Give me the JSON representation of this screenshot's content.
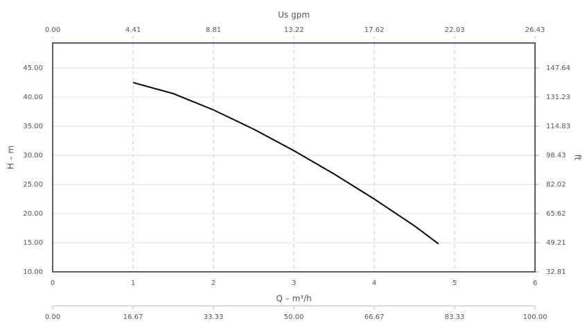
{
  "chart_data": {
    "type": "line",
    "xlabel": "Q – m³/h",
    "ylabel": "H – m",
    "y2label": "ft",
    "x": [
      1,
      1.5,
      2,
      2.5,
      3,
      3.5,
      4,
      4.5,
      4.8
    ],
    "series": [
      {
        "color": "#000000",
        "values": [
          42.5,
          40.6,
          37.8,
          34.5,
          30.8,
          26.8,
          22.5,
          17.9,
          14.8
        ]
      }
    ],
    "xlim": [
      0,
      6
    ],
    "xticks": [
      0,
      1,
      2,
      3,
      4,
      5,
      6
    ],
    "ylim": [
      10,
      49.29
    ],
    "yticks": [
      {
        "value": 10,
        "label": "10.00"
      },
      {
        "value": 15,
        "label": "15.00"
      },
      {
        "value": 20,
        "label": "20.00"
      },
      {
        "value": 25,
        "label": "25.00"
      },
      {
        "value": 30,
        "label": "30.00"
      },
      {
        "value": 35,
        "label": "35.00"
      },
      {
        "value": 40,
        "label": "40.00"
      },
      {
        "value": 45,
        "label": "45.00"
      }
    ],
    "y2lim": [
      32.81,
      161.7
    ],
    "y2ticks": [
      32.81,
      49.21,
      65.62,
      82.02,
      98.43,
      114.83,
      131.23,
      147.64
    ],
    "top_axis": {
      "label": "Us gpm",
      "lim": [
        0,
        26.43
      ],
      "ticks": [
        {
          "value": 0,
          "label": "0.00"
        },
        4.41,
        8.81,
        13.22,
        17.62,
        22.03,
        26.43
      ]
    },
    "bottom_axis2": {
      "lim": [
        0,
        100
      ],
      "ticks": [
        {
          "value": 0,
          "label": "0.00"
        },
        16.67,
        33.33,
        {
          "value": 50,
          "label": "50.00"
        },
        66.67,
        83.33,
        {
          "value": 100,
          "label": "100.00"
        }
      ]
    },
    "grid": true
  }
}
